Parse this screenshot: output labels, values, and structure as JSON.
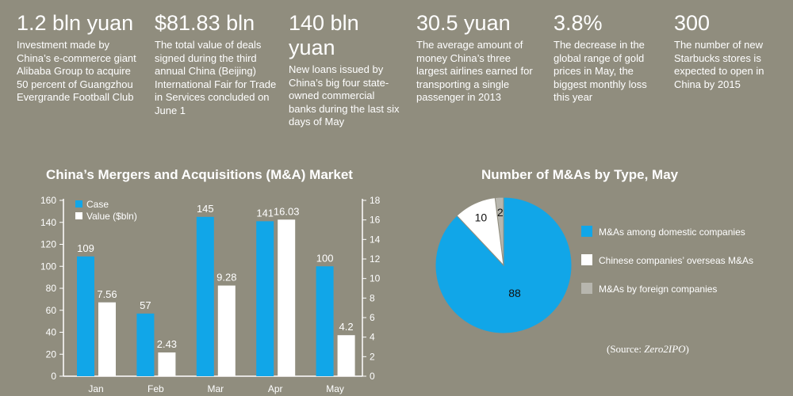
{
  "stats": [
    {
      "value": "1.2 bln yuan",
      "desc": "Investment made by China’s e-commerce giant Alibaba Group to acquire 50 percent of Guangzhou Evergrande Football Club"
    },
    {
      "value": "$81.83 bln",
      "desc": "The total value of deals signed during the third annual China (Beijing) International Fair for Trade in Services concluded on June 1"
    },
    {
      "value": "140 bln yuan",
      "desc": "New loans issued by China’s big four state-owned commercial banks during the last six days of May"
    },
    {
      "value": "30.5 yuan",
      "desc": "The average amount of money China’s three largest airlines earned for transporting a single passenger in 2013"
    },
    {
      "value": "3.8%",
      "desc": "The decrease in the global range of gold prices in May, the biggest monthly loss this year"
    },
    {
      "value": "300",
      "desc": "The number of new Starbucks stores is expected to open in China by 2015"
    }
  ],
  "colors": {
    "background": "#908d7e",
    "blue": "#11a6e8",
    "white": "#ffffff",
    "gray": "#b7b6ae"
  },
  "source": {
    "prefix": "(Source: ",
    "name": "Zero2IPO",
    "suffix": ")"
  },
  "chart_data": [
    {
      "type": "bar",
      "title": "China’s Mergers and Acquisitions (M&A) Market",
      "categories": [
        "Jan",
        "Feb",
        "Mar",
        "Apr",
        "May"
      ],
      "series": [
        {
          "name": "Case",
          "values": [
            109,
            57,
            145,
            141,
            100
          ],
          "labels": [
            "109",
            "57",
            "145",
            "141",
            "100"
          ],
          "axis": "left",
          "color": "#11a6e8"
        },
        {
          "name": "Value ($bln)",
          "values": [
            7.56,
            2.43,
            9.28,
            16.03,
            4.2
          ],
          "labels": [
            "7.56",
            "2.43",
            "9.28",
            "16.03",
            "4.2"
          ],
          "axis": "right",
          "color": "#ffffff"
        }
      ],
      "ylim_left": [
        0,
        160
      ],
      "yticks_left": [
        "0",
        "20",
        "40",
        "60",
        "80",
        "100",
        "120",
        "140",
        "160"
      ],
      "ylim_right": [
        0,
        18
      ],
      "yticks_right": [
        "0",
        "2",
        "4",
        "6",
        "8",
        "10",
        "12",
        "14",
        "16",
        "18"
      ],
      "legend": "top-left",
      "grid": false
    },
    {
      "type": "pie",
      "title": "Number of M&As by Type, May",
      "slices": [
        {
          "name": "M&As among domestic companies",
          "value": 88,
          "label": "88",
          "color": "#11a6e8"
        },
        {
          "name": "Chinese companies’ overseas M&As",
          "value": 10,
          "label": "10",
          "color": "#ffffff"
        },
        {
          "name": "M&As by foreign companies",
          "value": 2,
          "label": "2",
          "color": "#b7b6ae"
        }
      ],
      "legend": "right"
    }
  ]
}
